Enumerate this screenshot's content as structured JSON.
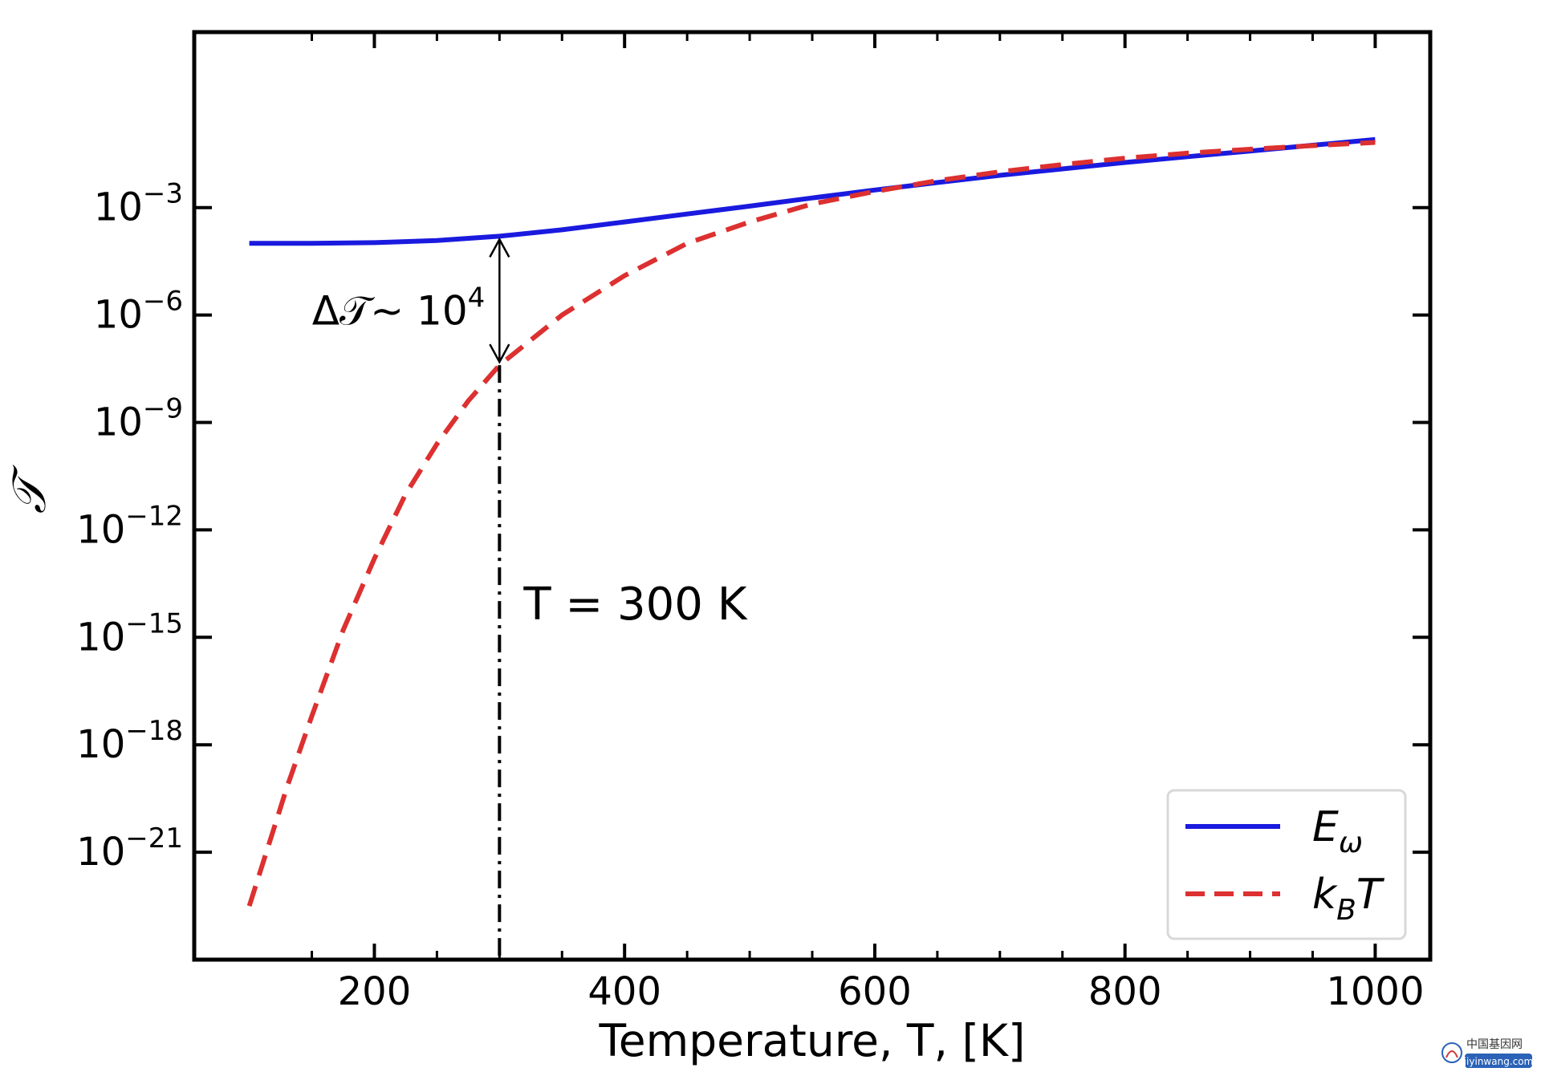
{
  "chart_data": {
    "type": "line",
    "xlabel": "Temperature, T, [K]",
    "ylabel": "𝒯",
    "xlim": [
      56,
      1044
    ],
    "ylim_log10": [
      -24,
      1.9
    ],
    "yscale": "log",
    "x_ticks": [
      200,
      400,
      600,
      800,
      1000
    ],
    "x_minor_ticks": [
      150,
      250,
      300,
      350,
      450,
      500,
      550,
      650,
      700,
      750,
      850,
      900,
      950
    ],
    "y_ticks": [
      {
        "exp": -3,
        "base": "10",
        "sup": "−3"
      },
      {
        "exp": -6,
        "base": "10",
        "sup": "−6"
      },
      {
        "exp": -9,
        "base": "10",
        "sup": "−9"
      },
      {
        "exp": -12,
        "base": "10",
        "sup": "−12"
      },
      {
        "exp": -15,
        "base": "10",
        "sup": "−15"
      },
      {
        "exp": -18,
        "base": "10",
        "sup": "−18"
      },
      {
        "exp": -21,
        "base": "10",
        "sup": "−21"
      }
    ],
    "series": [
      {
        "name": "E_ω",
        "color": "#1a1adf",
        "style": "solid",
        "x": [
          100,
          150,
          200,
          250,
          300,
          350,
          400,
          450,
          500,
          550,
          600,
          650,
          700,
          750,
          800,
          850,
          900,
          950,
          1000
        ],
        "log10_y": [
          -4.0,
          -4.0,
          -3.98,
          -3.92,
          -3.8,
          -3.62,
          -3.4,
          -3.18,
          -2.96,
          -2.73,
          -2.51,
          -2.3,
          -2.1,
          -1.92,
          -1.74,
          -1.58,
          -1.42,
          -1.26,
          -1.1
        ]
      },
      {
        "name": "k_B T",
        "color": "#dd3030",
        "style": "dashed",
        "x": [
          100,
          110,
          120,
          130,
          140,
          150,
          175,
          200,
          225,
          250,
          275,
          300,
          350,
          400,
          450,
          500,
          550,
          600,
          650,
          700,
          750,
          800,
          850,
          900,
          950,
          1000
        ],
        "log10_y": [
          -22.5,
          -21.4,
          -20.3,
          -19.2,
          -18.2,
          -17.2,
          -14.8,
          -12.8,
          -11.0,
          -9.6,
          -8.4,
          -7.4,
          -6.0,
          -4.9,
          -4.0,
          -3.4,
          -2.9,
          -2.55,
          -2.25,
          -2.0,
          -1.8,
          -1.62,
          -1.48,
          -1.37,
          -1.27,
          -1.18
        ]
      }
    ],
    "annotations": {
      "delta_label": {
        "main": "Δ𝒯∼ 10",
        "sup": "4"
      },
      "temp_label": "T = 300 K",
      "marker_x": 300
    },
    "legend": {
      "placement": "lower-right",
      "entries": [
        {
          "main": "E",
          "sub": "ω"
        },
        {
          "main": "k",
          "sub": "B",
          "tail": "T"
        }
      ]
    }
  },
  "watermark": {
    "title": "中国基因网",
    "url": "jiyinwang.com"
  }
}
